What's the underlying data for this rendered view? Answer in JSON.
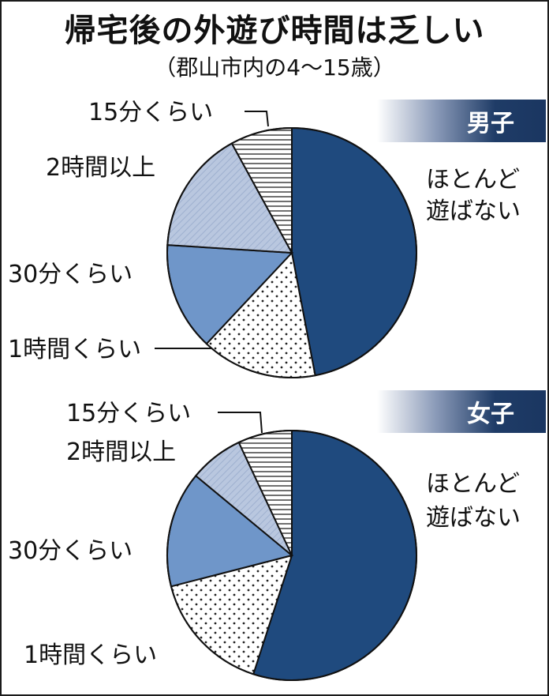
{
  "title": "帰宅後の外遊び時間は乏しい",
  "subtitle": "（郡山市内の4～15歳）",
  "colors": {
    "ほとんど遊ばない": "#1f4a7e",
    "1時間くらい": "#ffffff",
    "30分くらい": "#6f96c9",
    "2時間以上": "#b7c6de",
    "15分くらい": "#ffffff"
  },
  "chart_data": [
    {
      "type": "pie",
      "title": "男子",
      "categories": [
        "ほとんど遊ばない",
        "1時間くらい",
        "30分くらい",
        "2時間以上",
        "15分くらい"
      ],
      "values": [
        47,
        15,
        14,
        16,
        8
      ],
      "patterns": [
        "solid",
        "dots",
        "solid",
        "hatch",
        "horizontal-lines"
      ],
      "labels": {
        "ほとんど遊ばない_line1": "ほとんど",
        "ほとんど遊ばない_line2": "遊ばない",
        "1時間くらい": "1時間くらい",
        "30分くらい": "30分くらい",
        "2時間以上": "2時間以上",
        "15分くらい": "15分くらい"
      }
    },
    {
      "type": "pie",
      "title": "女子",
      "categories": [
        "ほとんど遊ばない",
        "1時間くらい",
        "30分くらい",
        "2時間以上",
        "15分くらい"
      ],
      "values": [
        55,
        16,
        15,
        7,
        7
      ],
      "patterns": [
        "solid",
        "dots",
        "solid",
        "hatch",
        "horizontal-lines"
      ],
      "labels": {
        "ほとんど遊ばない_line1": "ほとんど",
        "ほとんど遊ばない_line2": "遊ばない",
        "1時間くらい": "1時間くらい",
        "30分くらい": "30分くらい",
        "2時間以上": "2時間以上",
        "15分くらい": "15分くらい"
      }
    }
  ]
}
